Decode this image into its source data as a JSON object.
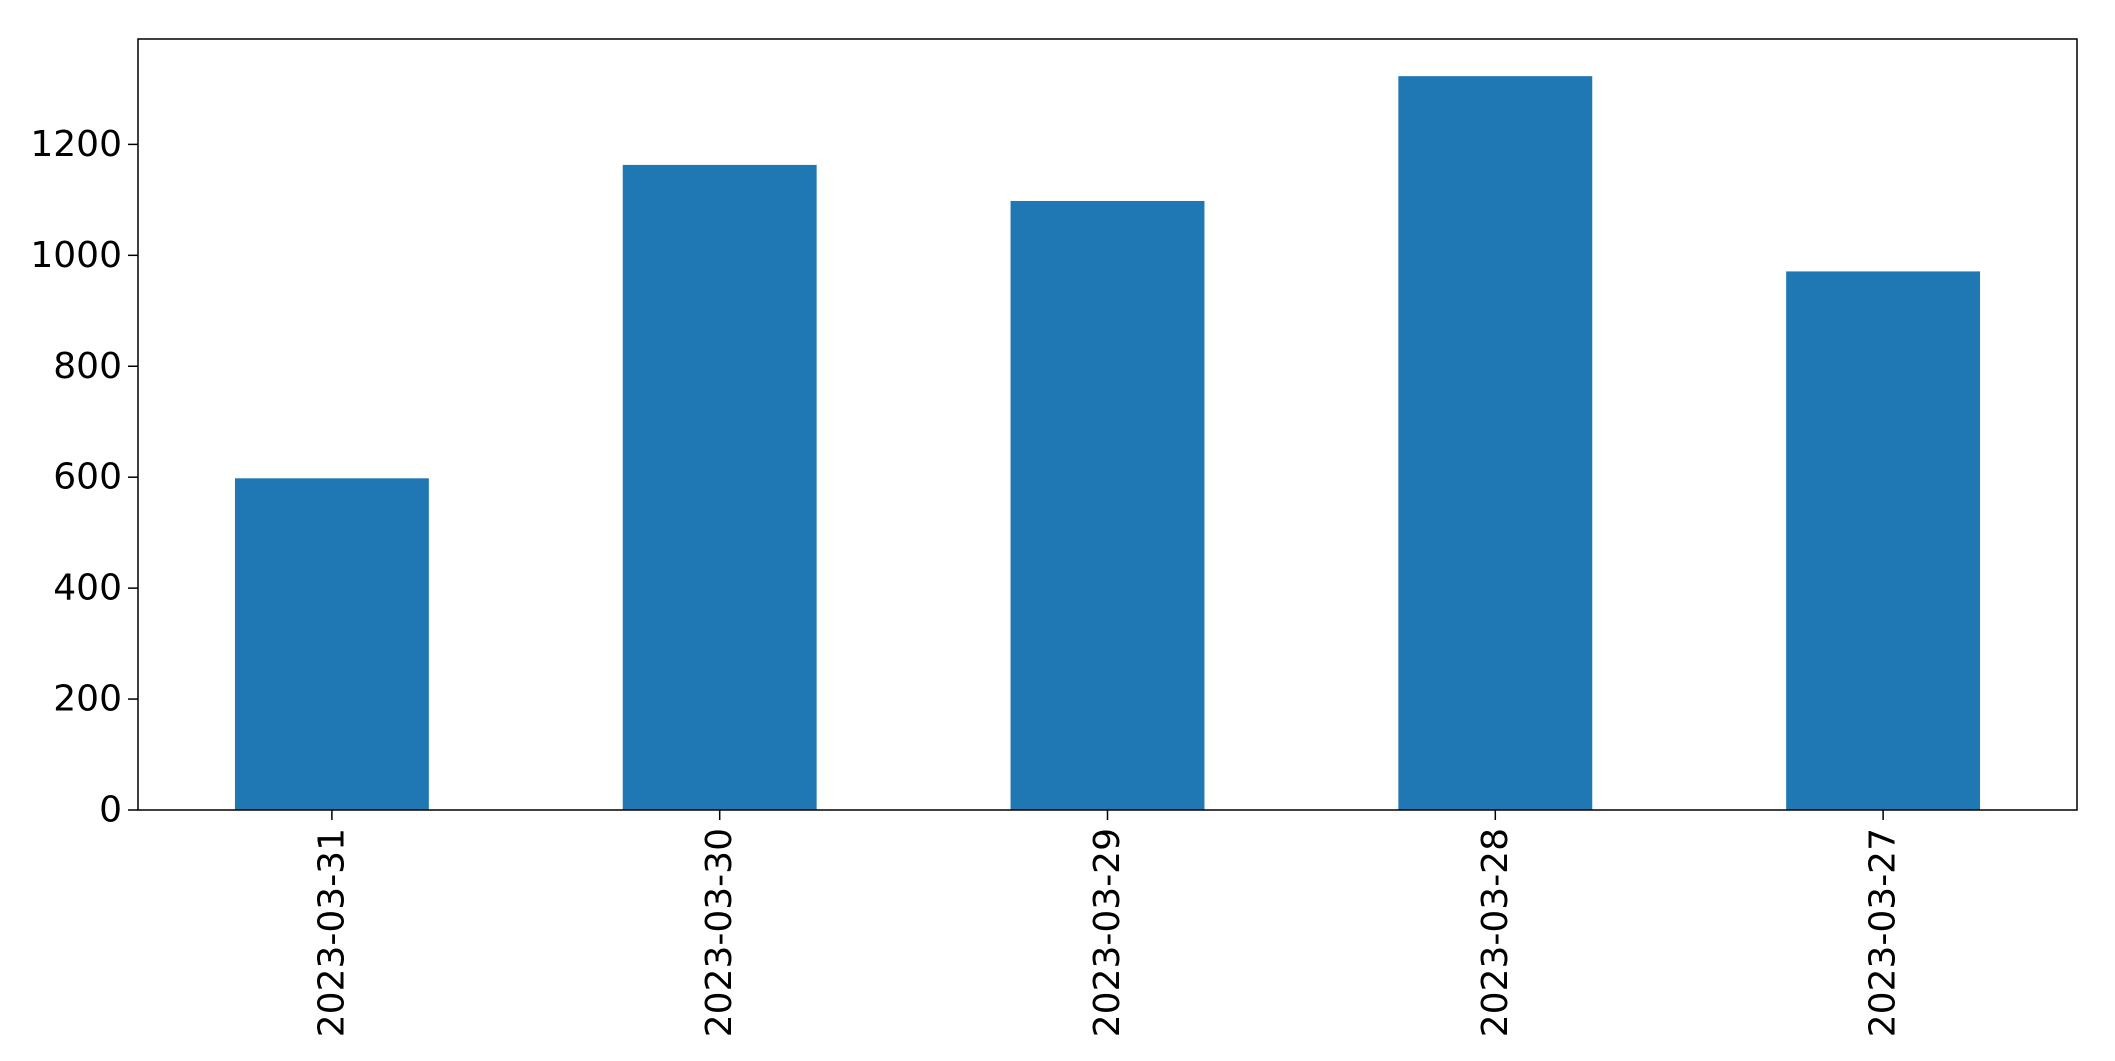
{
  "chart_data": {
    "type": "bar",
    "title": "",
    "xlabel": "",
    "ylabel": "",
    "categories": [
      "2023-03-31",
      "2023-03-30",
      "2023-03-29",
      "2023-03-28",
      "2023-03-27"
    ],
    "values": [
      598,
      1163,
      1098,
      1323,
      971
    ],
    "ylim": [
      0,
      1390
    ],
    "yticks": [
      0,
      200,
      400,
      600,
      800,
      1000,
      1200
    ],
    "legend": "none",
    "grid": false,
    "colors": {
      "bar": "#1f77b4",
      "axis": "#000000",
      "background": "#ffffff"
    }
  }
}
